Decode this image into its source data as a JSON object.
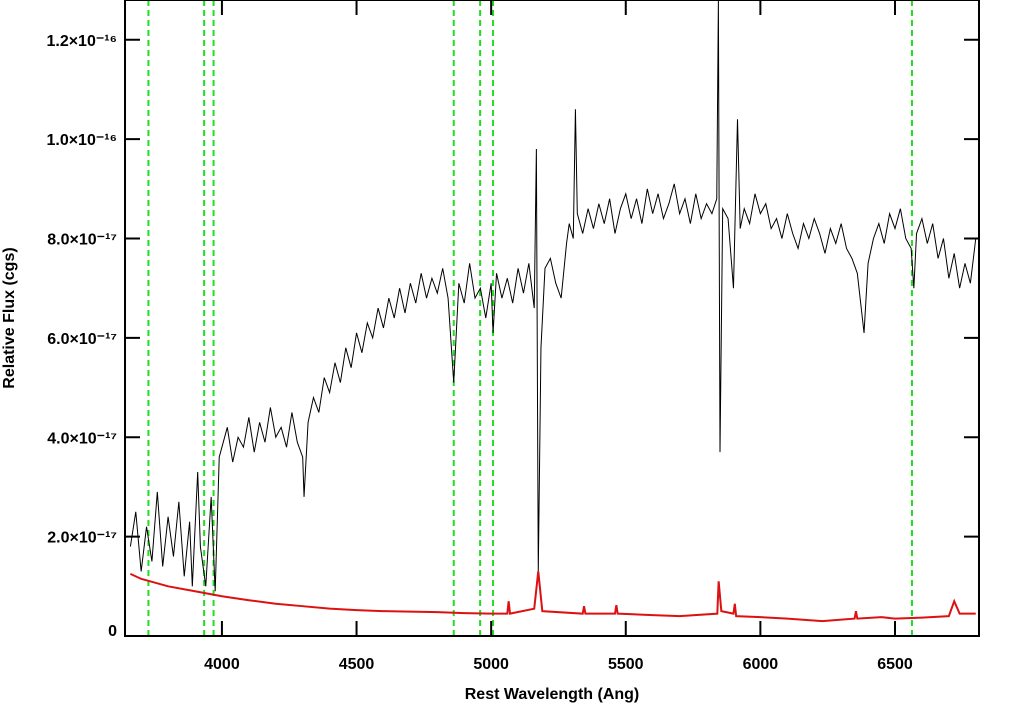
{
  "chart_data": {
    "type": "line",
    "xlabel": "Rest Wavelength (Ang)",
    "ylabel": "Relative Flux (cgs)",
    "xlim": [
      3640,
      6812
    ],
    "ylim": [
      0,
      1.28e-16
    ],
    "xticks": [
      4000,
      4500,
      5000,
      5500,
      6000,
      6500
    ],
    "yticks": [
      0,
      {
        "value": 2e-17,
        "label": "2.0×10⁻¹⁷"
      },
      {
        "value": 4e-17,
        "label": "4.0×10⁻¹⁷"
      },
      {
        "value": 6e-17,
        "label": "6.0×10⁻¹⁷"
      },
      {
        "value": 8e-17,
        "label": "8.0×10⁻¹⁷"
      },
      {
        "value": 1e-16,
        "label": "1.0×10⁻¹⁶"
      },
      {
        "value": 1.2e-16,
        "label": "1.2×10⁻¹⁶"
      }
    ],
    "vlines": {
      "x": [
        3727,
        3934,
        3969,
        4861,
        4959,
        5007,
        6563
      ],
      "color": "#22dd22"
    },
    "series": [
      {
        "color": "#000000",
        "x": [
          3660,
          3680,
          3700,
          3720,
          3740,
          3760,
          3780,
          3800,
          3820,
          3840,
          3860,
          3880,
          3890,
          3910,
          3920,
          3940,
          3960,
          3975,
          3990,
          4020,
          4040,
          4060,
          4080,
          4100,
          4120,
          4140,
          4160,
          4180,
          4200,
          4220,
          4240,
          4260,
          4280,
          4300,
          4305,
          4320,
          4340,
          4360,
          4380,
          4400,
          4420,
          4440,
          4460,
          4480,
          4500,
          4520,
          4540,
          4560,
          4580,
          4600,
          4620,
          4640,
          4660,
          4680,
          4700,
          4720,
          4740,
          4760,
          4780,
          4800,
          4820,
          4840,
          4861,
          4880,
          4900,
          4920,
          4940,
          4960,
          4980,
          5000,
          5007,
          5020,
          5040,
          5060,
          5080,
          5100,
          5120,
          5140,
          5160,
          5168,
          5175,
          5185,
          5200,
          5220,
          5240,
          5260,
          5280,
          5290,
          5305,
          5313,
          5320,
          5340,
          5360,
          5380,
          5400,
          5420,
          5440,
          5460,
          5480,
          5500,
          5520,
          5540,
          5560,
          5580,
          5600,
          5620,
          5640,
          5660,
          5680,
          5700,
          5720,
          5740,
          5760,
          5780,
          5800,
          5820,
          5838,
          5844,
          5850,
          5860,
          5880,
          5900,
          5915,
          5925,
          5940,
          5960,
          5980,
          6000,
          6020,
          6040,
          6060,
          6080,
          6100,
          6120,
          6140,
          6160,
          6180,
          6200,
          6220,
          6240,
          6260,
          6280,
          6300,
          6320,
          6340,
          6360,
          6385,
          6400,
          6420,
          6440,
          6460,
          6480,
          6500,
          6520,
          6540,
          6560,
          6570,
          6580,
          6600,
          6620,
          6640,
          6660,
          6680,
          6700,
          6720,
          6740,
          6760,
          6780,
          6800
        ],
        "values": [
          1.8e-17,
          2.5e-17,
          1.3e-17,
          2.2e-17,
          1.5e-17,
          2.9e-17,
          1.4e-17,
          2.4e-17,
          1.6e-17,
          2.7e-17,
          1.2e-17,
          2.3e-17,
          1e-17,
          3.3e-17,
          1.8e-17,
          1e-17,
          2.8e-17,
          9e-18,
          3.6e-17,
          4.2e-17,
          3.5e-17,
          4e-17,
          3.8e-17,
          4.4e-17,
          3.7e-17,
          4.3e-17,
          3.9e-17,
          4.6e-17,
          4e-17,
          4.2e-17,
          3.8e-17,
          4.5e-17,
          3.9e-17,
          3.6e-17,
          2.8e-17,
          4.3e-17,
          4.8e-17,
          4.5e-17,
          5.2e-17,
          4.9e-17,
          5.5e-17,
          5.1e-17,
          5.8e-17,
          5.4e-17,
          6.1e-17,
          5.7e-17,
          6.3e-17,
          6e-17,
          6.6e-17,
          6.2e-17,
          6.8e-17,
          6.4e-17,
          7e-17,
          6.5e-17,
          7.1e-17,
          6.7e-17,
          7.3e-17,
          6.8e-17,
          7.2e-17,
          6.9e-17,
          7.4e-17,
          6.8e-17,
          5.1e-17,
          7.1e-17,
          6.7e-17,
          7.5e-17,
          6.8e-17,
          7e-17,
          6.4e-17,
          7.1e-17,
          6.1e-17,
          7.3e-17,
          6.8e-17,
          7.2e-17,
          6.7e-17,
          7.4e-17,
          6.9e-17,
          7.5e-17,
          6.6e-17,
          9.8e-17,
          1.3e-17,
          5.8e-17,
          7.4e-17,
          7.6e-17,
          7.1e-17,
          6.8e-17,
          7.9e-17,
          8.3e-17,
          8e-17,
          1.06e-16,
          8.5e-17,
          8.1e-17,
          8.6e-17,
          8.2e-17,
          8.7e-17,
          8.3e-17,
          8.8e-17,
          8.1e-17,
          8.6e-17,
          8.9e-17,
          8.4e-17,
          8.8e-17,
          8.3e-17,
          9e-17,
          8.5e-17,
          8.9e-17,
          8.4e-17,
          8.7e-17,
          9.1e-17,
          8.5e-17,
          8.8e-17,
          8.3e-17,
          8.9e-17,
          8.4e-17,
          8.7e-17,
          8.5e-17,
          8.8e-17,
          1.28e-16,
          3.7e-17,
          8.6e-17,
          8.4e-17,
          7e-17,
          1.04e-16,
          8.2e-17,
          8.6e-17,
          8.3e-17,
          8.9e-17,
          8.5e-17,
          8.7e-17,
          8.2e-17,
          8.4e-17,
          8e-17,
          8.5e-17,
          8.1e-17,
          7.8e-17,
          8.3e-17,
          8e-17,
          8.4e-17,
          8.1e-17,
          7.7e-17,
          8.2e-17,
          7.9e-17,
          8.3e-17,
          7.8e-17,
          7.6e-17,
          7.3e-17,
          6.1e-17,
          7.5e-17,
          8e-17,
          8.3e-17,
          7.9e-17,
          8.5e-17,
          8.2e-17,
          8.6e-17,
          8e-17,
          7.8e-17,
          7e-17,
          8.1e-17,
          8.4e-17,
          7.9e-17,
          8.3e-17,
          7.6e-17,
          8e-17,
          7.2e-17,
          7.7e-17,
          7e-17,
          7.5e-17,
          7.1e-17,
          8e-17
        ]
      },
      {
        "color": "#dd1111",
        "x": [
          3660,
          3700,
          3800,
          3900,
          4000,
          4100,
          4200,
          4300,
          4400,
          4500,
          4600,
          4700,
          4800,
          4900,
          5000,
          5060,
          5065,
          5070,
          5160,
          5175,
          5190,
          5340,
          5345,
          5350,
          5460,
          5465,
          5470,
          5600,
          5700,
          5840,
          5845,
          5855,
          5900,
          5905,
          5910,
          6000,
          6100,
          6230,
          6350,
          6355,
          6360,
          6450,
          6500,
          6600,
          6700,
          6720,
          6740,
          6800
        ],
        "values": [
          1.25e-17,
          1.15e-17,
          1e-17,
          9e-18,
          8e-18,
          7.2e-18,
          6.5e-18,
          6e-18,
          5.5e-18,
          5.2e-18,
          5e-18,
          4.9e-18,
          4.8e-18,
          4.6e-18,
          4.5e-18,
          4.5e-18,
          7e-18,
          4.5e-18,
          5.5e-18,
          1.3e-17,
          5e-18,
          4.5e-18,
          6e-18,
          4.5e-18,
          4.5e-18,
          6.2e-18,
          4.5e-18,
          4.2e-18,
          4e-18,
          4.5e-18,
          1.1e-17,
          5e-18,
          4.5e-18,
          6.5e-18,
          4e-18,
          3.8e-18,
          3.5e-18,
          3e-18,
          3.5e-18,
          5e-18,
          3.5e-18,
          3.8e-18,
          3.5e-18,
          3.7e-18,
          4e-18,
          7e-18,
          4.5e-18,
          4.5e-18
        ]
      }
    ]
  }
}
